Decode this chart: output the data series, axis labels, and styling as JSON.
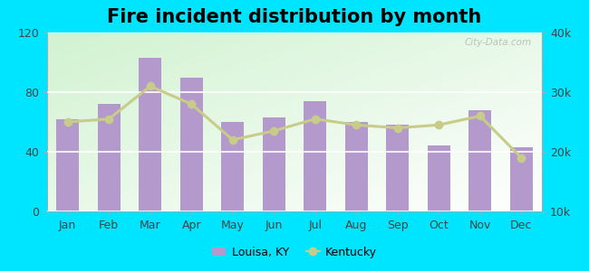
{
  "title": "Fire incident distribution by month",
  "months": [
    "Jan",
    "Feb",
    "Mar",
    "Apr",
    "May",
    "Jun",
    "Jul",
    "Aug",
    "Sep",
    "Oct",
    "Nov",
    "Dec"
  ],
  "louisa_values": [
    62,
    72,
    103,
    90,
    60,
    63,
    74,
    60,
    58,
    44,
    68,
    43
  ],
  "kentucky_values": [
    25000,
    25500,
    31000,
    28000,
    22000,
    23500,
    25500,
    24500,
    24000,
    24500,
    26000,
    19000
  ],
  "bar_color": "#b399cc",
  "line_color": "#c8cc88",
  "line_marker": "o",
  "left_ylim": [
    0,
    120
  ],
  "left_yticks": [
    0,
    40,
    80,
    120
  ],
  "right_ylim": [
    10000,
    40000
  ],
  "right_yticks": [
    10000,
    20000,
    30000,
    40000
  ],
  "right_yticklabels": [
    "10k",
    "20k",
    "30k",
    "40k"
  ],
  "left_yticklabels": [
    "0",
    "40",
    "80",
    "120"
  ],
  "bg_color_fig": "#00e5ff",
  "title_fontsize": 15,
  "legend_louisa": "Louisa, KY",
  "legend_kentucky": "Kentucky",
  "watermark": "City-Data.com"
}
